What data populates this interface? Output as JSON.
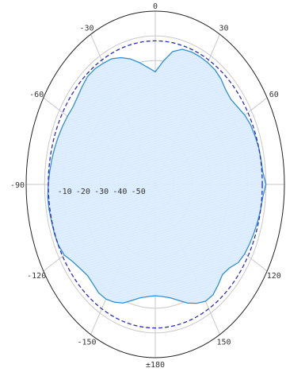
{
  "chart_data": {
    "type": "polar",
    "angle_ticks": [
      {
        "angle": 0,
        "label": "0"
      },
      {
        "angle": 30,
        "label": "30"
      },
      {
        "angle": 60,
        "label": "60"
      },
      {
        "angle": 90,
        "label": ""
      },
      {
        "angle": 120,
        "label": "120"
      },
      {
        "angle": 150,
        "label": "150"
      },
      {
        "angle": 180,
        "label": "±180"
      },
      {
        "angle": -150,
        "label": "-150"
      },
      {
        "angle": -120,
        "label": "-120"
      },
      {
        "angle": -90,
        "label": "-90"
      },
      {
        "angle": -60,
        "label": "-60"
      },
      {
        "angle": -30,
        "label": "-30"
      }
    ],
    "radial_range": [
      -60,
      10
    ],
    "radial_ticks": [
      -10,
      -20,
      -30,
      -40,
      -50
    ],
    "reference_level": 0,
    "grid": true,
    "series": [
      {
        "fill": true,
        "angles": [
          0,
          5,
          10,
          15,
          20,
          25,
          30,
          35,
          40,
          45,
          50,
          55,
          60,
          65,
          70,
          75,
          80,
          85,
          90,
          95,
          100,
          105,
          110,
          115,
          120,
          125,
          130,
          135,
          140,
          145,
          150,
          155,
          160,
          165,
          170,
          175,
          180,
          -175,
          -170,
          -165,
          -160,
          -155,
          -150,
          -145,
          -140,
          -135,
          -130,
          -125,
          -120,
          -115,
          -110,
          -105,
          -100,
          -95,
          -90,
          -85,
          -80,
          -75,
          -70,
          -65,
          -60,
          -55,
          -50,
          -45,
          -40,
          -35,
          -30,
          -25,
          -20,
          -15,
          -10,
          -5,
          0
        ],
        "values": [
          -14.5,
          -10,
          -5.5,
          -3.5,
          -3,
          -3,
          -3.2,
          -3.5,
          -4.5,
          -6,
          -6.5,
          -5.5,
          -4,
          -3,
          -2.5,
          -2,
          -1.8,
          -1.5,
          0,
          -1.5,
          -2,
          -2.5,
          -3,
          -3.5,
          -4,
          -5,
          -7.5,
          -8.5,
          -7,
          -5.5,
          -5.5,
          -7,
          -9,
          -11.5,
          -13.5,
          -14.5,
          -15,
          -14.5,
          -13.5,
          -11.5,
          -9,
          -7.5,
          -6.5,
          -6.5,
          -7.5,
          -8,
          -7,
          -5.5,
          -3,
          -2,
          -1.8,
          -1.8,
          -1.5,
          -1.5,
          -2,
          -2.5,
          -3,
          -3.5,
          -4,
          -4.5,
          -5,
          -5.5,
          -5,
          -4,
          -3,
          -3,
          -3.5,
          -4,
          -5.5,
          -7.5,
          -10,
          -12.5,
          -14.5
        ]
      },
      {
        "dashed": true,
        "angles": [
          0,
          30,
          60,
          90,
          120,
          150,
          180,
          -150,
          -120,
          -90,
          -60,
          -30,
          0
        ],
        "values": [
          -2,
          -2,
          -2,
          -2,
          -2,
          -2,
          -2,
          -2,
          -2,
          -2,
          -2,
          -2,
          -2
        ]
      }
    ],
    "colors": {
      "fill": "#ddeeff",
      "pattern": "#2f8ed6",
      "dashed": "#2b2bc8",
      "grid": "#c8c8c8",
      "outline": "#222222"
    }
  }
}
